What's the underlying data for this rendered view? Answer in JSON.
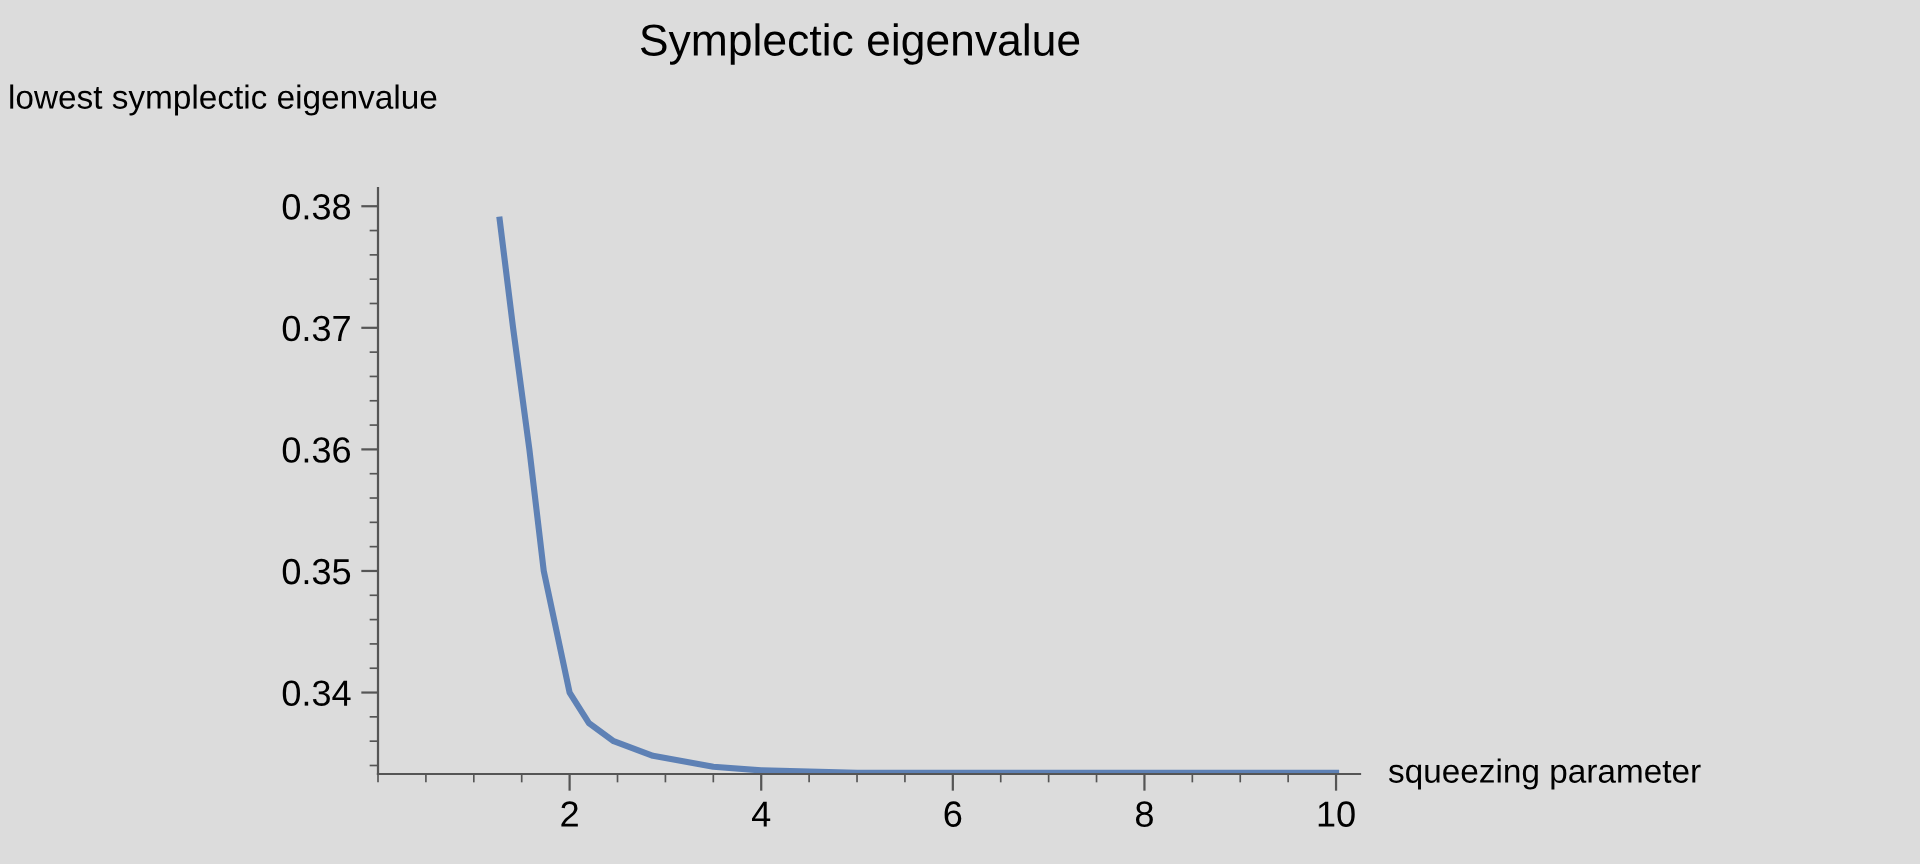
{
  "chart_data": {
    "type": "line",
    "title": "Symplectic eigenvalue",
    "xlabel": "squeezing parameter",
    "ylabel": "lowest symplectic eigenvalue",
    "series": [
      {
        "color": "#5e81b5",
        "x": [
          1.27,
          1.41,
          1.58,
          1.73,
          2.0,
          2.2,
          2.46,
          2.87,
          3.5,
          4,
          5,
          6,
          8,
          10
        ],
        "values": [
          0.3789,
          0.37,
          0.36,
          0.35,
          0.34,
          0.3375,
          0.336,
          0.3348,
          0.3339,
          0.3336,
          0.3334,
          0.3334,
          0.3334,
          0.3334
        ]
      }
    ],
    "xlim": [
      0,
      10.25
    ],
    "xticks": [
      2,
      4,
      6,
      8,
      10
    ],
    "ylim": [
      0.3333,
      0.3815
    ],
    "yticks": [
      0.34,
      0.35,
      0.36,
      0.37,
      0.38
    ],
    "grid": false,
    "legend": false
  }
}
